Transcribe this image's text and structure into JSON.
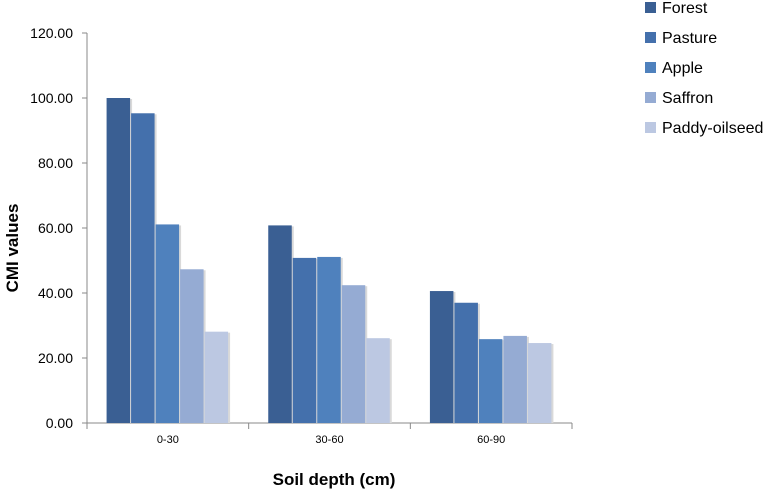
{
  "chart_data": {
    "type": "bar",
    "categories": [
      "0-30",
      "30-60",
      "60-90"
    ],
    "series": [
      {
        "name": "Forest",
        "color": "#3A5F93",
        "values": [
          100.0,
          60.8,
          40.6
        ]
      },
      {
        "name": "Pasture",
        "color": "#4470AC",
        "values": [
          95.3,
          50.8,
          37.0
        ]
      },
      {
        "name": "Apple",
        "color": "#4F81BD",
        "values": [
          61.1,
          51.1,
          25.8
        ]
      },
      {
        "name": "Saffron",
        "color": "#95ABD3",
        "values": [
          47.3,
          42.4,
          26.8
        ]
      },
      {
        "name": "Paddy-oilseed",
        "color": "#BCC8E2",
        "values": [
          28.1,
          26.1,
          24.6
        ]
      }
    ],
    "xlabel": "Soil depth (cm)",
    "ylabel": "CMI values",
    "ylim": [
      0,
      120
    ],
    "yticks": [
      0,
      20,
      40,
      60,
      80,
      100,
      120
    ],
    "ytick_labels": [
      "0.00",
      "20.00",
      "40.00",
      "60.00",
      "80.00",
      "100.00",
      "120.00"
    ],
    "grid": false,
    "legend": "top-right"
  }
}
